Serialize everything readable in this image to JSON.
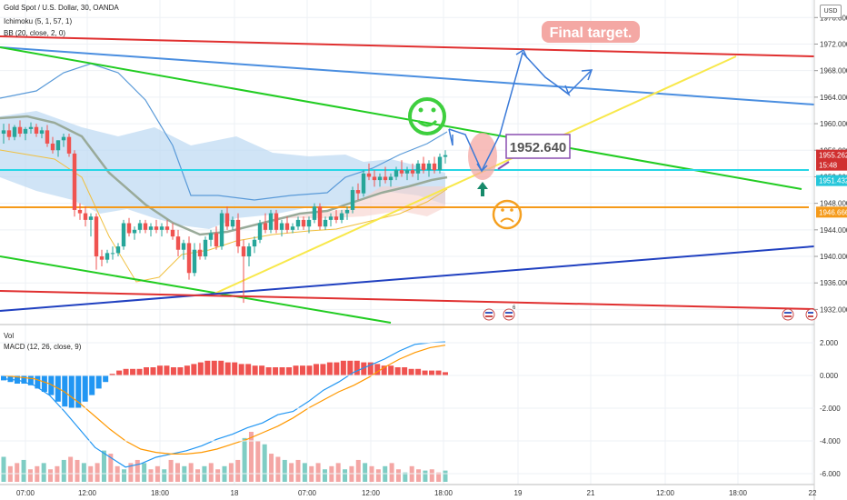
{
  "header": {
    "symbol_line": "Gold Spot / U.S. Dollar, 30, OANDA",
    "indicator_1": "Ichimoku (5, 1, 57, 1)",
    "indicator_2": "BB (20, close, 2, 0)",
    "vol_label": "Vol",
    "macd_label": "MACD (12, 26, close, 9)"
  },
  "currency_button": "USD",
  "price_axis": {
    "ticks": [
      "1976.000",
      "1972.000",
      "1968.000",
      "1964.000",
      "1960.000",
      "1956.000",
      "1952.000",
      "1948.000",
      "1944.000",
      "1940.000",
      "1936.000",
      "1932.000"
    ]
  },
  "price_tags": [
    {
      "text": "1955.262",
      "color": "#d03030"
    },
    {
      "text": "15:48",
      "color": "#d03030"
    },
    {
      "text": "1951.432",
      "color": "#26c6da"
    },
    {
      "text": "1946.666",
      "color": "#f59a1a"
    }
  ],
  "macd_axis": {
    "ticks": [
      "2.000",
      "0.000",
      "-2.000",
      "-4.000",
      "-6.000"
    ]
  },
  "time_axis": {
    "ticks": [
      "07:00",
      "12:00",
      "18:00",
      "18",
      "07:00",
      "12:00",
      "18:00",
      "19",
      "21",
      "12:00",
      "18:00",
      "22"
    ]
  },
  "annotations": {
    "final_target": "Final target.",
    "level_label": "1952.640",
    "bull_icon": "smiley-face-icon",
    "bear_icon": "sad-face-icon",
    "event_icon": "us-flag-event-icon",
    "event_superscript": "6",
    "colors": {
      "bull": "#3ecf3e",
      "bear": "#f5a020",
      "target_bg": "#f4a8a4",
      "level_border": "#8a4fb0",
      "channel": "#22cc22",
      "resistance": "#e03030",
      "trend": "#3060c0",
      "support_yellow": "#f8e84a"
    }
  },
  "chart_data": {
    "type": "line",
    "title": "Gold Spot / U.S. Dollar, 30, OANDA",
    "ylim": [
      1930,
      1977
    ],
    "y_ticks": [
      1932,
      1936,
      1940,
      1944,
      1948,
      1952,
      1956,
      1960,
      1964,
      1968,
      1972,
      1976
    ],
    "x_ticks": [
      "07:00",
      "12:00",
      "18:00",
      "18",
      "07:00",
      "12:00",
      "18:00",
      "19",
      "21",
      "12:00",
      "18:00",
      "22"
    ],
    "grid": true,
    "current_price": 1955.262,
    "horizontal_levels": [
      {
        "name": "cyan level",
        "value": 1951.43,
        "color": "#26c6da"
      },
      {
        "name": "orange level",
        "value": 1946.67,
        "color": "#f59a1a"
      }
    ],
    "target_level": 1952.64,
    "candles": [
      {
        "o": 1958.5,
        "h": 1960.0,
        "l": 1957.0,
        "c": 1959.0
      },
      {
        "o": 1959.0,
        "h": 1960.0,
        "l": 1957.5,
        "c": 1958.0
      },
      {
        "o": 1958.0,
        "h": 1959.8,
        "l": 1957.5,
        "c": 1959.5
      },
      {
        "o": 1959.5,
        "h": 1960.5,
        "l": 1958.0,
        "c": 1958.5
      },
      {
        "o": 1958.5,
        "h": 1959.5,
        "l": 1957.5,
        "c": 1959.2
      },
      {
        "o": 1959.2,
        "h": 1960.2,
        "l": 1958.5,
        "c": 1959.5
      },
      {
        "o": 1959.5,
        "h": 1960.0,
        "l": 1958.0,
        "c": 1958.5
      },
      {
        "o": 1958.5,
        "h": 1959.5,
        "l": 1957.8,
        "c": 1959.0
      },
      {
        "o": 1959.0,
        "h": 1959.8,
        "l": 1956.5,
        "c": 1957.0
      },
      {
        "o": 1957.0,
        "h": 1958.0,
        "l": 1955.5,
        "c": 1956.0
      },
      {
        "o": 1956.0,
        "h": 1957.5,
        "l": 1955.0,
        "c": 1957.5
      },
      {
        "o": 1957.5,
        "h": 1958.5,
        "l": 1956.5,
        "c": 1958.0
      },
      {
        "o": 1958.0,
        "h": 1958.5,
        "l": 1955.0,
        "c": 1955.5
      },
      {
        "o": 1955.5,
        "h": 1956.0,
        "l": 1946.0,
        "c": 1947.0
      },
      {
        "o": 1947.0,
        "h": 1948.0,
        "l": 1945.5,
        "c": 1946.5
      },
      {
        "o": 1946.5,
        "h": 1947.5,
        "l": 1944.5,
        "c": 1945.5
      },
      {
        "o": 1945.5,
        "h": 1946.5,
        "l": 1943.0,
        "c": 1946.0
      },
      {
        "o": 1946.0,
        "h": 1946.5,
        "l": 1938.0,
        "c": 1940.0
      },
      {
        "o": 1940.0,
        "h": 1941.0,
        "l": 1938.5,
        "c": 1939.5
      },
      {
        "o": 1939.5,
        "h": 1941.0,
        "l": 1939.0,
        "c": 1940.5
      },
      {
        "o": 1940.5,
        "h": 1941.5,
        "l": 1939.5,
        "c": 1940.5
      },
      {
        "o": 1940.5,
        "h": 1942.0,
        "l": 1940.0,
        "c": 1941.5
      },
      {
        "o": 1941.5,
        "h": 1945.5,
        "l": 1941.0,
        "c": 1945.0
      },
      {
        "o": 1945.0,
        "h": 1945.8,
        "l": 1943.0,
        "c": 1943.5
      },
      {
        "o": 1943.5,
        "h": 1944.5,
        "l": 1942.5,
        "c": 1944.0
      },
      {
        "o": 1944.0,
        "h": 1945.5,
        "l": 1943.5,
        "c": 1945.0
      },
      {
        "o": 1945.0,
        "h": 1945.5,
        "l": 1943.5,
        "c": 1944.0
      },
      {
        "o": 1944.0,
        "h": 1945.0,
        "l": 1943.0,
        "c": 1944.5
      },
      {
        "o": 1944.5,
        "h": 1945.5,
        "l": 1943.5,
        "c": 1944.0
      },
      {
        "o": 1944.0,
        "h": 1945.0,
        "l": 1943.0,
        "c": 1944.5
      },
      {
        "o": 1944.5,
        "h": 1945.5,
        "l": 1943.5,
        "c": 1944.0
      },
      {
        "o": 1944.0,
        "h": 1945.0,
        "l": 1942.5,
        "c": 1943.0
      },
      {
        "o": 1943.0,
        "h": 1944.0,
        "l": 1940.0,
        "c": 1941.0
      },
      {
        "o": 1941.0,
        "h": 1942.5,
        "l": 1939.5,
        "c": 1942.0
      },
      {
        "o": 1942.0,
        "h": 1943.0,
        "l": 1936.5,
        "c": 1937.5
      },
      {
        "o": 1937.5,
        "h": 1942.0,
        "l": 1937.0,
        "c": 1941.0
      },
      {
        "o": 1941.0,
        "h": 1942.0,
        "l": 1939.5,
        "c": 1940.0
      },
      {
        "o": 1940.0,
        "h": 1943.0,
        "l": 1939.5,
        "c": 1942.5
      },
      {
        "o": 1942.5,
        "h": 1944.0,
        "l": 1941.5,
        "c": 1943.5
      },
      {
        "o": 1943.5,
        "h": 1944.5,
        "l": 1941.0,
        "c": 1941.5
      },
      {
        "o": 1941.5,
        "h": 1947.0,
        "l": 1941.0,
        "c": 1946.5
      },
      {
        "o": 1946.5,
        "h": 1947.5,
        "l": 1944.0,
        "c": 1944.5
      },
      {
        "o": 1944.5,
        "h": 1946.0,
        "l": 1944.0,
        "c": 1945.5
      },
      {
        "o": 1945.5,
        "h": 1946.5,
        "l": 1940.5,
        "c": 1941.5
      },
      {
        "o": 1941.5,
        "h": 1942.5,
        "l": 1933.0,
        "c": 1940.0
      },
      {
        "o": 1940.0,
        "h": 1942.0,
        "l": 1938.5,
        "c": 1941.5
      },
      {
        "o": 1941.5,
        "h": 1943.0,
        "l": 1940.5,
        "c": 1942.5
      },
      {
        "o": 1942.5,
        "h": 1945.5,
        "l": 1942.0,
        "c": 1945.0
      },
      {
        "o": 1945.0,
        "h": 1946.5,
        "l": 1943.5,
        "c": 1944.0
      },
      {
        "o": 1944.0,
        "h": 1947.0,
        "l": 1943.5,
        "c": 1946.5
      },
      {
        "o": 1946.5,
        "h": 1947.0,
        "l": 1943.5,
        "c": 1944.0
      },
      {
        "o": 1944.0,
        "h": 1945.5,
        "l": 1943.0,
        "c": 1945.0
      },
      {
        "o": 1945.0,
        "h": 1946.0,
        "l": 1943.5,
        "c": 1944.0
      },
      {
        "o": 1944.0,
        "h": 1945.0,
        "l": 1943.5,
        "c": 1944.5
      },
      {
        "o": 1944.5,
        "h": 1946.0,
        "l": 1944.0,
        "c": 1945.5
      },
      {
        "o": 1945.5,
        "h": 1946.0,
        "l": 1944.0,
        "c": 1944.5
      },
      {
        "o": 1944.5,
        "h": 1946.0,
        "l": 1943.5,
        "c": 1945.5
      },
      {
        "o": 1945.5,
        "h": 1948.0,
        "l": 1945.0,
        "c": 1947.5
      },
      {
        "o": 1947.5,
        "h": 1948.0,
        "l": 1944.0,
        "c": 1944.5
      },
      {
        "o": 1944.5,
        "h": 1946.0,
        "l": 1944.0,
        "c": 1945.5
      },
      {
        "o": 1945.5,
        "h": 1946.5,
        "l": 1944.5,
        "c": 1946.0
      },
      {
        "o": 1946.0,
        "h": 1947.0,
        "l": 1945.0,
        "c": 1945.5
      },
      {
        "o": 1945.5,
        "h": 1947.0,
        "l": 1945.0,
        "c": 1946.5
      },
      {
        "o": 1946.5,
        "h": 1947.5,
        "l": 1945.5,
        "c": 1947.0
      },
      {
        "o": 1947.0,
        "h": 1950.5,
        "l": 1946.5,
        "c": 1950.0
      },
      {
        "o": 1950.0,
        "h": 1951.0,
        "l": 1948.5,
        "c": 1949.5
      },
      {
        "o": 1949.5,
        "h": 1953.0,
        "l": 1949.0,
        "c": 1952.5
      },
      {
        "o": 1952.5,
        "h": 1954.0,
        "l": 1951.5,
        "c": 1952.0
      },
      {
        "o": 1952.0,
        "h": 1953.0,
        "l": 1950.5,
        "c": 1951.5
      },
      {
        "o": 1951.5,
        "h": 1952.5,
        "l": 1950.5,
        "c": 1952.0
      },
      {
        "o": 1952.0,
        "h": 1953.5,
        "l": 1951.0,
        "c": 1951.5
      },
      {
        "o": 1951.5,
        "h": 1952.5,
        "l": 1950.5,
        "c": 1952.0
      },
      {
        "o": 1952.0,
        "h": 1953.5,
        "l": 1951.5,
        "c": 1953.0
      },
      {
        "o": 1953.0,
        "h": 1954.5,
        "l": 1952.0,
        "c": 1952.5
      },
      {
        "o": 1952.5,
        "h": 1953.5,
        "l": 1951.5,
        "c": 1953.0
      },
      {
        "o": 1953.0,
        "h": 1954.0,
        "l": 1952.0,
        "c": 1952.5
      },
      {
        "o": 1952.5,
        "h": 1954.5,
        "l": 1951.5,
        "c": 1954.0
      },
      {
        "o": 1954.0,
        "h": 1955.0,
        "l": 1952.5,
        "c": 1953.0
      },
      {
        "o": 1953.0,
        "h": 1954.5,
        "l": 1952.0,
        "c": 1954.0
      },
      {
        "o": 1954.0,
        "h": 1955.0,
        "l": 1952.5,
        "c": 1953.0
      },
      {
        "o": 1953.0,
        "h": 1955.5,
        "l": 1952.5,
        "c": 1955.0
      },
      {
        "o": 1955.0,
        "h": 1956.0,
        "l": 1954.0,
        "c": 1955.262
      }
    ],
    "macd": {
      "ylim": [
        -6.5,
        2.5
      ],
      "y_ticks": [
        2,
        0,
        -2,
        -4,
        -6
      ],
      "series": [
        {
          "name": "MACD",
          "values": [
            -0.2,
            -0.3,
            -0.6,
            -1.2,
            -2.2,
            -3.3,
            -4.4,
            -5.0,
            -5.6,
            -5.4,
            -5.0,
            -4.8,
            -4.6,
            -4.3,
            -3.9,
            -3.6,
            -3.2,
            -2.9,
            -2.4,
            -2.2,
            -1.6,
            -0.9,
            -0.4,
            0.2,
            0.6,
            1.0,
            1.5,
            1.9,
            2.0,
            2.05
          ]
        },
        {
          "name": "Signal",
          "values": [
            0.0,
            -0.1,
            -0.2,
            -0.5,
            -1.0,
            -1.7,
            -2.5,
            -3.3,
            -4.0,
            -4.5,
            -4.7,
            -4.8,
            -4.8,
            -4.7,
            -4.5,
            -4.2,
            -3.9,
            -3.5,
            -3.1,
            -2.6,
            -2.0,
            -1.5,
            -1.0,
            -0.6,
            -0.1,
            0.5,
            1.0,
            1.4,
            1.7,
            1.85
          ]
        }
      ],
      "histogram": [
        -0.3,
        -0.4,
        -0.5,
        -0.5,
        -0.6,
        -0.8,
        -1.0,
        -1.2,
        -1.6,
        -1.9,
        -2.0,
        -2.0,
        -1.6,
        -1.2,
        -0.8,
        -0.4,
        0.1,
        0.3,
        0.4,
        0.4,
        0.4,
        0.5,
        0.5,
        0.6,
        0.6,
        0.5,
        0.5,
        0.6,
        0.7,
        0.8,
        0.9,
        0.9,
        0.9,
        0.8,
        0.8,
        0.7,
        0.7,
        0.6,
        0.6,
        0.5,
        0.5,
        0.5,
        0.5,
        0.6,
        0.6,
        0.6,
        0.7,
        0.7,
        0.8,
        0.8,
        0.9,
        0.9,
        0.9,
        0.8,
        0.8,
        0.7,
        0.6,
        0.6,
        0.5,
        0.5,
        0.4,
        0.4,
        0.3,
        0.3,
        0.3,
        0.2
      ]
    },
    "volume": [
      40,
      25,
      30,
      35,
      20,
      25,
      30,
      20,
      25,
      35,
      40,
      35,
      30,
      25,
      30,
      50,
      45,
      25,
      20,
      30,
      35,
      30,
      20,
      25,
      20,
      35,
      30,
      25,
      30,
      20,
      25,
      30,
      20,
      25,
      30,
      35,
      70,
      80,
      65,
      60,
      45,
      40,
      35,
      30,
      35,
      30,
      25,
      30,
      20,
      25,
      30,
      20,
      25,
      35,
      30,
      25,
      20,
      25,
      30,
      20,
      15,
      25,
      20,
      18,
      20,
      15,
      18
    ]
  }
}
